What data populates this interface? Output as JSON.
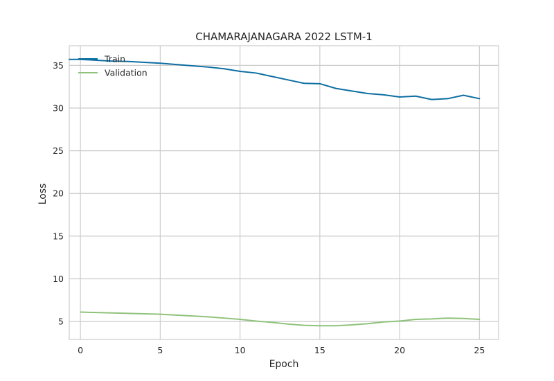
{
  "chart_data": {
    "type": "line",
    "title": "CHAMARAJANAGARA 2022 LSTM-1",
    "xlabel": "Epoch",
    "ylabel": "Loss",
    "xlim": [
      -0.7,
      26.2
    ],
    "ylim": [
      2.9,
      37.3
    ],
    "xticks": [
      0,
      5,
      10,
      15,
      20,
      25
    ],
    "yticks": [
      5,
      10,
      15,
      20,
      25,
      30,
      35
    ],
    "grid": true,
    "legend_position": "top-left",
    "x": [
      -0.7,
      0,
      1,
      2,
      3,
      4,
      5,
      6,
      7,
      8,
      9,
      10,
      11,
      12,
      13,
      14,
      15,
      16,
      17,
      18,
      19,
      20,
      21,
      22,
      23,
      24,
      25
    ],
    "series": [
      {
        "name": "Train",
        "color": "#0d6ea1",
        "values": [
          35.7,
          35.7,
          35.6,
          35.5,
          35.45,
          35.35,
          35.25,
          35.1,
          34.95,
          34.8,
          34.6,
          34.3,
          34.1,
          33.7,
          33.3,
          32.9,
          32.85,
          32.3,
          32.0,
          31.7,
          31.55,
          31.3,
          31.4,
          31.0,
          31.1,
          31.5,
          31.1
        ]
      },
      {
        "name": "Validation",
        "color": "#8fc27a",
        "values": [
          null,
          6.1,
          6.05,
          6.0,
          5.95,
          5.9,
          5.85,
          5.75,
          5.65,
          5.55,
          5.4,
          5.25,
          5.05,
          4.9,
          4.7,
          4.55,
          4.5,
          4.5,
          4.6,
          4.75,
          4.95,
          5.05,
          5.25,
          5.3,
          5.4,
          5.35,
          5.25
        ]
      }
    ]
  }
}
